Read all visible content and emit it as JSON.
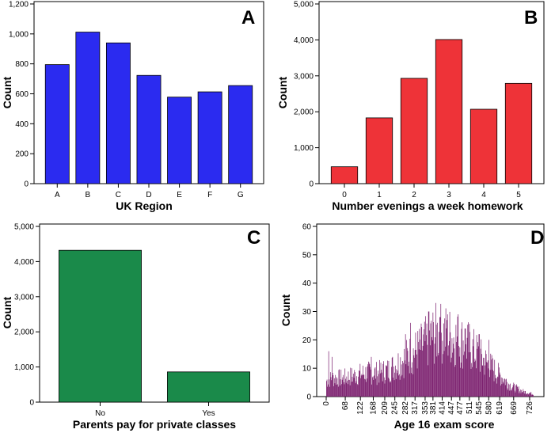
{
  "chart_data": [
    {
      "panel_label": "A",
      "type": "bar",
      "xlabel": "UK Region",
      "ylabel": "Count",
      "categories": [
        "A",
        "B",
        "C",
        "D",
        "E",
        "F",
        "G"
      ],
      "values": [
        795,
        1012,
        940,
        723,
        578,
        613,
        655
      ],
      "ylim": [
        0,
        1200
      ],
      "yticks": [
        0,
        200,
        400,
        600,
        800,
        1000,
        1200
      ],
      "ytick_labels": [
        "0",
        "200",
        "400",
        "600",
        "800",
        "1,000",
        "1,200"
      ],
      "bar_color": "#2b2bf0",
      "grid": false
    },
    {
      "panel_label": "B",
      "type": "bar",
      "xlabel": "Number evenings a week homework",
      "ylabel": "Count",
      "categories": [
        "0",
        "1",
        "2",
        "3",
        "4",
        "5"
      ],
      "values": [
        470,
        1830,
        2930,
        4010,
        2070,
        2790
      ],
      "ylim": [
        0,
        5000
      ],
      "yticks": [
        0,
        1000,
        2000,
        3000,
        4000,
        5000
      ],
      "ytick_labels": [
        "0",
        "1,000",
        "2,000",
        "3,000",
        "4,000",
        "5,000"
      ],
      "bar_color": "#ee3338",
      "grid": false
    },
    {
      "panel_label": "C",
      "type": "bar",
      "xlabel": "Parents pay for private classes",
      "ylabel": "Count",
      "categories": [
        "No",
        "Yes"
      ],
      "values": [
        4320,
        860
      ],
      "ylim": [
        0,
        5000
      ],
      "yticks": [
        0,
        1000,
        2000,
        3000,
        4000,
        5000
      ],
      "ytick_labels": [
        "0",
        "1,000",
        "2,000",
        "3,000",
        "4,000",
        "5,000"
      ],
      "bar_color": "#1a8a4a",
      "grid": false
    },
    {
      "panel_label": "D",
      "type": "bar",
      "subtype": "histogram",
      "xlabel": "Age 16 exam score",
      "ylabel": "Count",
      "xlim": [
        0,
        760
      ],
      "ylim": [
        0,
        60
      ],
      "yticks": [
        0,
        10,
        20,
        30,
        40,
        50,
        60
      ],
      "ytick_labels": [
        "0",
        "10",
        "20",
        "30",
        "40",
        "50",
        "60"
      ],
      "xticks": [
        0,
        68,
        122,
        168,
        209,
        245,
        282,
        317,
        353,
        381,
        414,
        447,
        477,
        511,
        545,
        580,
        619,
        669,
        726
      ],
      "xtick_labels": [
        "0",
        "68",
        "122",
        "168",
        "209",
        "245",
        "282",
        "317",
        "353",
        "381",
        "414",
        "447",
        "477",
        "511",
        "545",
        "580",
        "619",
        "669",
        "726"
      ],
      "bar_color": "#7b1f6e",
      "grid": false,
      "profile_x": [
        0,
        20,
        60,
        100,
        140,
        180,
        220,
        260,
        300,
        330,
        360,
        380,
        400,
        420,
        440,
        460,
        480,
        500,
        520,
        540,
        560,
        580,
        600,
        620,
        640,
        660,
        680,
        700,
        720,
        740,
        760
      ],
      "profile_y": [
        6,
        7,
        7,
        8,
        9,
        9,
        10,
        13,
        16,
        18,
        21,
        23,
        24,
        24,
        23,
        22,
        21,
        20,
        18,
        16,
        14,
        12,
        10,
        8,
        6,
        4,
        3,
        2,
        1.5,
        1,
        0
      ],
      "spikes": [
        [
          8,
          16
        ],
        [
          390,
          33
        ],
        [
          365,
          30
        ],
        [
          405,
          28
        ],
        [
          470,
          29
        ],
        [
          300,
          26
        ],
        [
          282,
          22
        ],
        [
          495,
          24
        ],
        [
          545,
          22
        ],
        [
          580,
          20
        ],
        [
          20,
          14
        ],
        [
          160,
          14
        ],
        [
          430,
          27
        ]
      ]
    }
  ]
}
